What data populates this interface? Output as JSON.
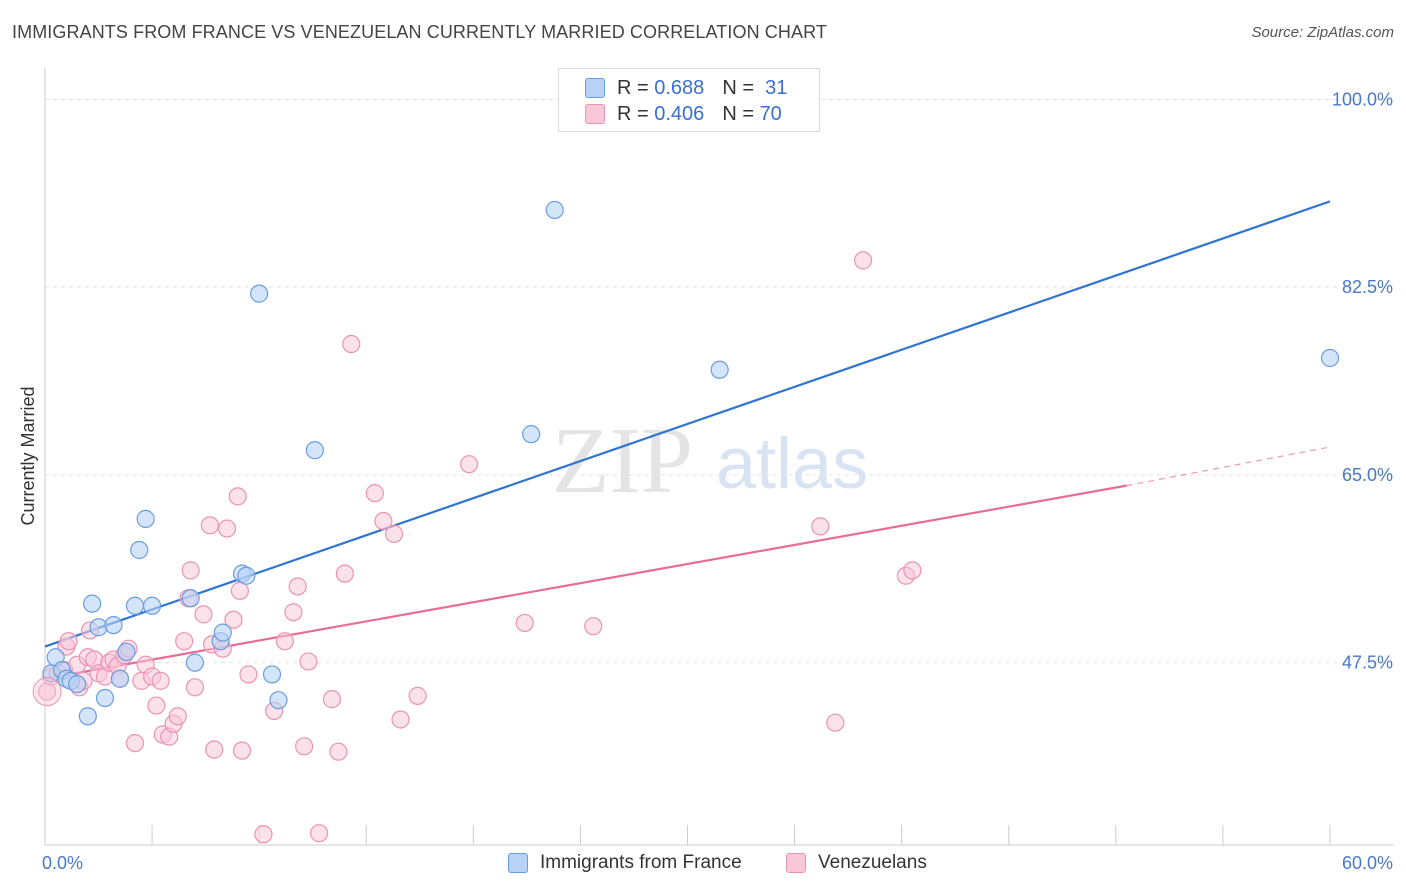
{
  "title": "IMMIGRANTS FROM FRANCE VS VENEZUELAN CURRENTLY MARRIED CORRELATION CHART",
  "source": "Source: ZipAtlas.com",
  "watermark": {
    "zip": "ZIP",
    "atlas": "atlas"
  },
  "legend": {
    "france": {
      "r_label": "R =",
      "r_value": "0.688",
      "n_label": "N =",
      "n_value": "31"
    },
    "venezuelans": {
      "r_label": "R =",
      "r_value": "0.406",
      "n_label": "N =",
      "n_value": "70"
    }
  },
  "colors": {
    "france_fill": "#b7d2f5",
    "france_stroke": "#6a9de0",
    "france_line": "#2f74d0",
    "venez_fill": "#f8c8d8",
    "venez_stroke": "#ea93b2",
    "venez_line": "#e86c98"
  },
  "chart_data": {
    "type": "scatter",
    "title": "IMMIGRANTS FROM FRANCE VS VENEZUELAN CURRENTLY MARRIED CORRELATION CHART",
    "xlabel": "",
    "ylabel": "Currently Married",
    "xlim": [
      0,
      60
    ],
    "ylim": [
      30.5,
      102
    ],
    "x_tick_labels": [
      "0.0%",
      "60.0%"
    ],
    "y_ticks": [
      47.5,
      65.0,
      82.5,
      100.0
    ],
    "y_tick_labels": [
      "47.5%",
      "65.0%",
      "82.5%",
      "100.0%"
    ],
    "series": [
      {
        "name": "Immigrants from France",
        "r": 0.688,
        "n": 31,
        "points": [
          [
            0.3,
            46.5
          ],
          [
            0.5,
            48.0
          ],
          [
            0.8,
            46.8
          ],
          [
            1.0,
            46.0
          ],
          [
            1.2,
            45.8
          ],
          [
            1.5,
            45.5
          ],
          [
            2.0,
            42.5
          ],
          [
            2.2,
            53.0
          ],
          [
            2.5,
            50.8
          ],
          [
            2.8,
            44.2
          ],
          [
            3.2,
            51.0
          ],
          [
            3.5,
            46.0
          ],
          [
            3.8,
            48.5
          ],
          [
            4.2,
            52.8
          ],
          [
            4.4,
            58.0
          ],
          [
            4.7,
            60.9
          ],
          [
            5.0,
            52.8
          ],
          [
            6.8,
            53.5
          ],
          [
            7.0,
            47.5
          ],
          [
            8.2,
            49.5
          ],
          [
            8.3,
            50.3
          ],
          [
            9.2,
            55.8
          ],
          [
            9.4,
            55.6
          ],
          [
            10.0,
            81.9
          ],
          [
            10.6,
            46.4
          ],
          [
            10.9,
            44.0
          ],
          [
            12.6,
            67.3
          ],
          [
            22.7,
            68.8
          ],
          [
            23.8,
            89.7
          ],
          [
            31.5,
            74.8
          ],
          [
            60.0,
            75.9
          ]
        ],
        "trend": {
          "x0": 0,
          "y0": 49.0,
          "x1": 60,
          "y1": 90.5
        }
      },
      {
        "name": "Venezuelans",
        "r": 0.406,
        "n": 70,
        "points": [
          [
            0.1,
            44.8
          ],
          [
            0.3,
            46.2
          ],
          [
            0.6,
            46.5
          ],
          [
            0.9,
            46.8
          ],
          [
            1.0,
            49.0
          ],
          [
            1.1,
            49.5
          ],
          [
            1.5,
            47.3
          ],
          [
            1.6,
            45.2
          ],
          [
            1.8,
            45.8
          ],
          [
            2.0,
            48.0
          ],
          [
            2.1,
            50.5
          ],
          [
            2.3,
            47.8
          ],
          [
            2.5,
            46.5
          ],
          [
            2.8,
            46.2
          ],
          [
            3.0,
            47.5
          ],
          [
            3.2,
            47.8
          ],
          [
            3.4,
            47.2
          ],
          [
            3.5,
            46.0
          ],
          [
            3.7,
            48.2
          ],
          [
            3.9,
            48.8
          ],
          [
            4.2,
            40.0
          ],
          [
            4.5,
            45.8
          ],
          [
            4.7,
            47.3
          ],
          [
            5.0,
            46.2
          ],
          [
            5.2,
            43.5
          ],
          [
            5.4,
            45.8
          ],
          [
            5.5,
            40.8
          ],
          [
            5.8,
            40.6
          ],
          [
            6.0,
            41.8
          ],
          [
            6.2,
            42.5
          ],
          [
            6.5,
            49.5
          ],
          [
            6.7,
            53.5
          ],
          [
            6.8,
            56.1
          ],
          [
            7.0,
            45.2
          ],
          [
            7.4,
            52.0
          ],
          [
            7.7,
            60.3
          ],
          [
            7.8,
            49.2
          ],
          [
            7.9,
            39.4
          ],
          [
            8.3,
            48.8
          ],
          [
            8.5,
            60.0
          ],
          [
            8.8,
            51.5
          ],
          [
            9.0,
            63.0
          ],
          [
            9.1,
            54.2
          ],
          [
            9.2,
            39.3
          ],
          [
            9.5,
            46.4
          ],
          [
            10.2,
            31.5
          ],
          [
            10.7,
            43.0
          ],
          [
            11.2,
            49.5
          ],
          [
            11.6,
            52.2
          ],
          [
            11.8,
            54.6
          ],
          [
            12.1,
            39.7
          ],
          [
            12.3,
            47.6
          ],
          [
            12.8,
            31.6
          ],
          [
            13.4,
            44.1
          ],
          [
            13.7,
            39.2
          ],
          [
            14.0,
            55.8
          ],
          [
            14.3,
            77.2
          ],
          [
            15.4,
            63.3
          ],
          [
            15.8,
            60.7
          ],
          [
            16.3,
            59.5
          ],
          [
            16.6,
            42.2
          ],
          [
            17.4,
            44.4
          ],
          [
            19.8,
            66.0
          ],
          [
            22.4,
            51.2
          ],
          [
            25.6,
            50.9
          ],
          [
            36.2,
            60.2
          ],
          [
            36.9,
            41.9
          ],
          [
            38.2,
            85.0
          ],
          [
            40.2,
            55.6
          ],
          [
            40.5,
            56.1
          ]
        ],
        "trend": {
          "x0": 0,
          "y0": 46.0,
          "x1": 50.5,
          "y1": 64.0
        },
        "trend_extension": {
          "x0": 50.5,
          "y0": 64.0,
          "x1": 60,
          "y1": 67.6
        }
      }
    ]
  },
  "bottom_legend": [
    "Immigrants from France",
    "Venezuelans"
  ]
}
